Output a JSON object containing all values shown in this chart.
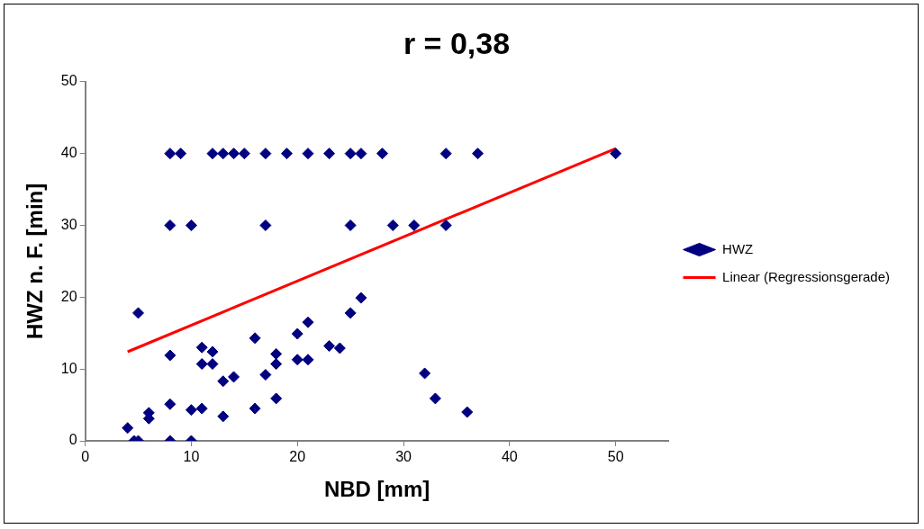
{
  "chart_data": {
    "type": "scatter",
    "title": "r = 0,38",
    "xlabel": "NBD [mm]",
    "ylabel": "HWZ n. F. [min]",
    "xlim": [
      0,
      55
    ],
    "xticks": [
      0,
      10,
      20,
      30,
      40,
      50
    ],
    "ylim": [
      0,
      50
    ],
    "yticks": [
      0,
      10,
      20,
      30,
      40,
      50
    ],
    "grid": false,
    "legend": "right",
    "marker": "diamond",
    "series": [
      {
        "name": "HWZ",
        "color": "#000080",
        "x": [
          8,
          9,
          12,
          13,
          14,
          15,
          17,
          19,
          21,
          23,
          25,
          26,
          28,
          34,
          37,
          50,
          8,
          10,
          17,
          25,
          29,
          31,
          34,
          4,
          4.6,
          5,
          5,
          6,
          6,
          8,
          8,
          8,
          10,
          10,
          11,
          11,
          11,
          12,
          12,
          13,
          13,
          14,
          16,
          16,
          17,
          18,
          18,
          18,
          20,
          20,
          21,
          21,
          23,
          24,
          25,
          26,
          32,
          33,
          36
        ],
        "values": [
          40,
          40,
          40,
          40,
          40,
          40,
          40,
          40,
          40,
          40,
          40,
          40,
          40,
          40,
          40,
          40,
          30,
          30,
          30,
          30,
          30,
          30,
          30,
          1.8,
          0,
          0,
          17.8,
          3.9,
          3.1,
          11.9,
          5.1,
          0,
          4.3,
          0,
          13,
          10.7,
          4.5,
          12.4,
          10.7,
          8.3,
          3.4,
          8.9,
          14.3,
          4.5,
          9.2,
          12.1,
          10.7,
          5.9,
          14.9,
          11.3,
          16.5,
          11.3,
          13.2,
          12.9,
          17.8,
          19.9,
          9.4,
          5.9,
          4
        ]
      },
      {
        "name": "Linear (Regressionsgerade)",
        "type": "line",
        "color": "#ff0000",
        "marker": "none",
        "line_style": "solid",
        "x": [
          4,
          50
        ],
        "values": [
          12.4,
          40.7
        ]
      }
    ]
  }
}
